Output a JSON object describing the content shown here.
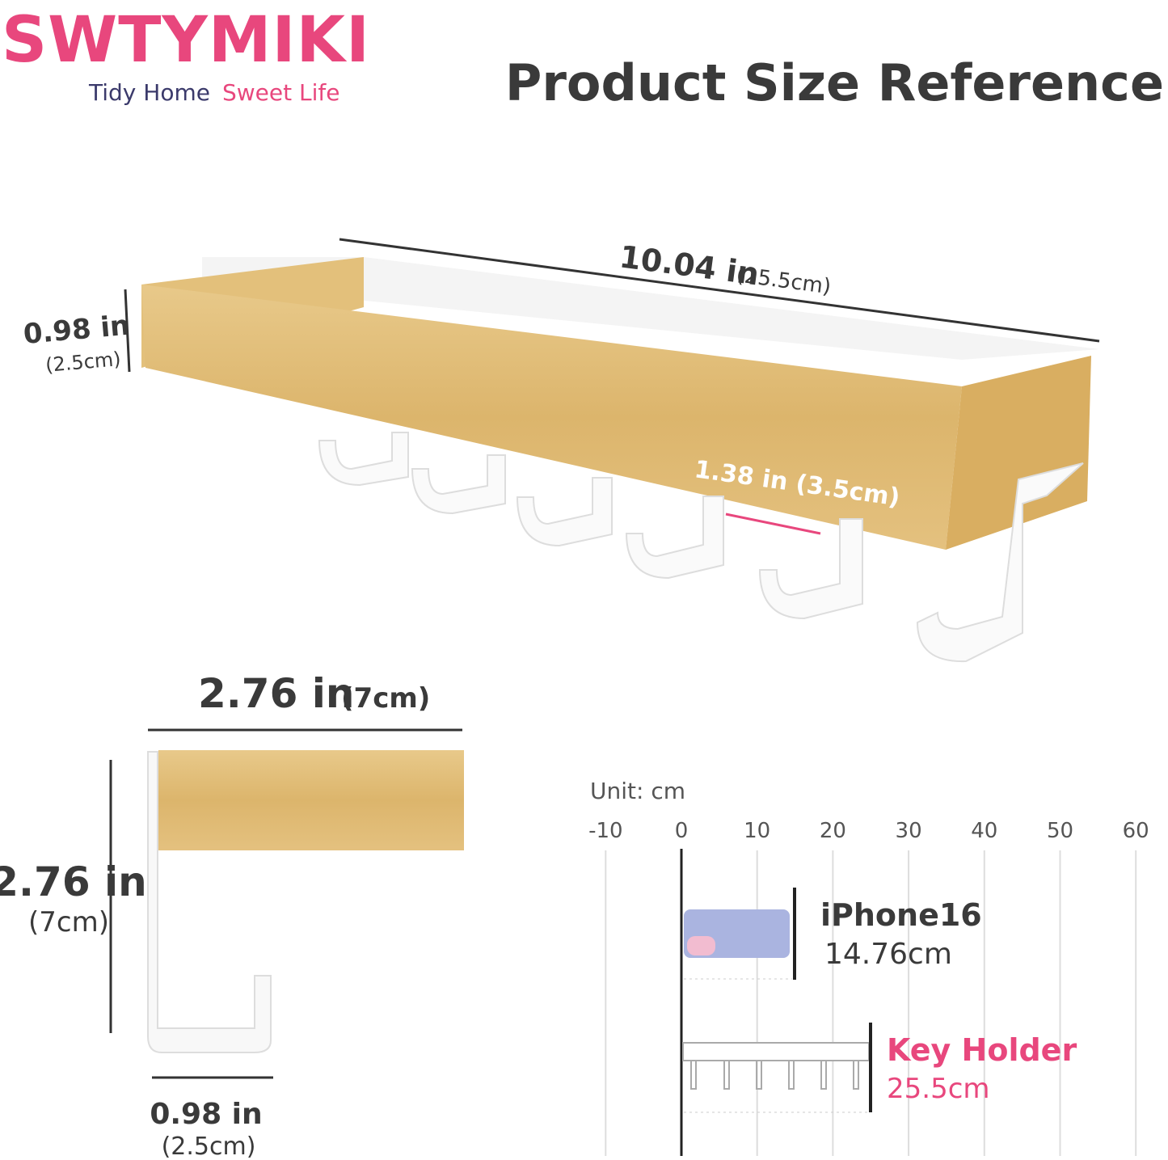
{
  "brand": {
    "name": "SWTYMIKI",
    "tagline_1": "Tidy Home",
    "tagline_2": "Sweet Life"
  },
  "title": "Product Size Reference",
  "main_view": {
    "length": {
      "imperial": "10.04 in",
      "metric": "(25.5cm)"
    },
    "height": {
      "imperial": "0.98 in",
      "metric": "(2.5cm)"
    },
    "hook_spacing": "1.38 in (3.5cm)"
  },
  "side_view": {
    "depth": {
      "imperial": "2.76 in",
      "metric": "(7cm)"
    },
    "total_height": {
      "imperial": "2.76 in",
      "metric": "(7cm)"
    },
    "hook_width": {
      "imperial": "0.98 in",
      "metric": "(2.5cm)"
    }
  },
  "scale": {
    "unit": "Unit: cm",
    "ticks": [
      -10,
      0,
      10,
      20,
      30,
      40,
      50,
      60
    ],
    "items": [
      {
        "name": "iPhone16",
        "length": "14.76cm"
      },
      {
        "name": "Key Holder",
        "length": "25.5cm"
      }
    ]
  }
}
